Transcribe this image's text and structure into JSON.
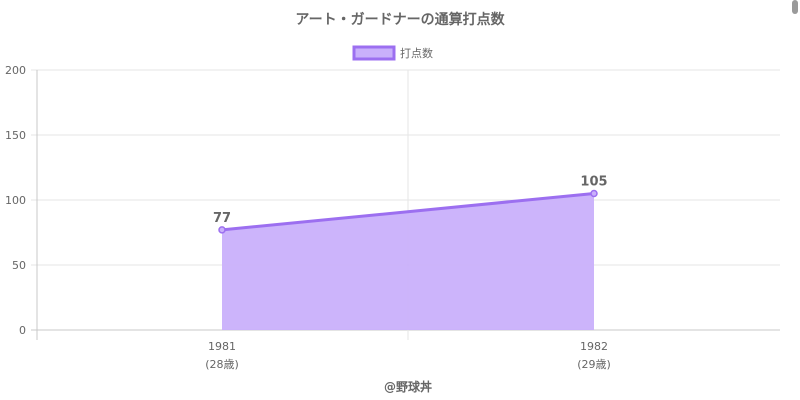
{
  "chart_data": {
    "type": "area",
    "title": "アート・ガードナーの通算打点数",
    "categories": [
      "1981",
      "1982"
    ],
    "category_sublabels": [
      "(28歳)",
      "(29歳)"
    ],
    "series": [
      {
        "name": "打点数",
        "values": [
          77,
          105
        ]
      }
    ],
    "ylim": [
      0,
      200
    ],
    "yticks": [
      0,
      50,
      100,
      150,
      200
    ],
    "grid": true,
    "legend_position": "top",
    "data_labels": true
  },
  "colors": {
    "line": "#9c6ff0",
    "fill": "#c9b0fb",
    "grid": "#e6e6e6",
    "axis": "#c8c8c8",
    "text": "#666666"
  },
  "credit": "@野球丼"
}
